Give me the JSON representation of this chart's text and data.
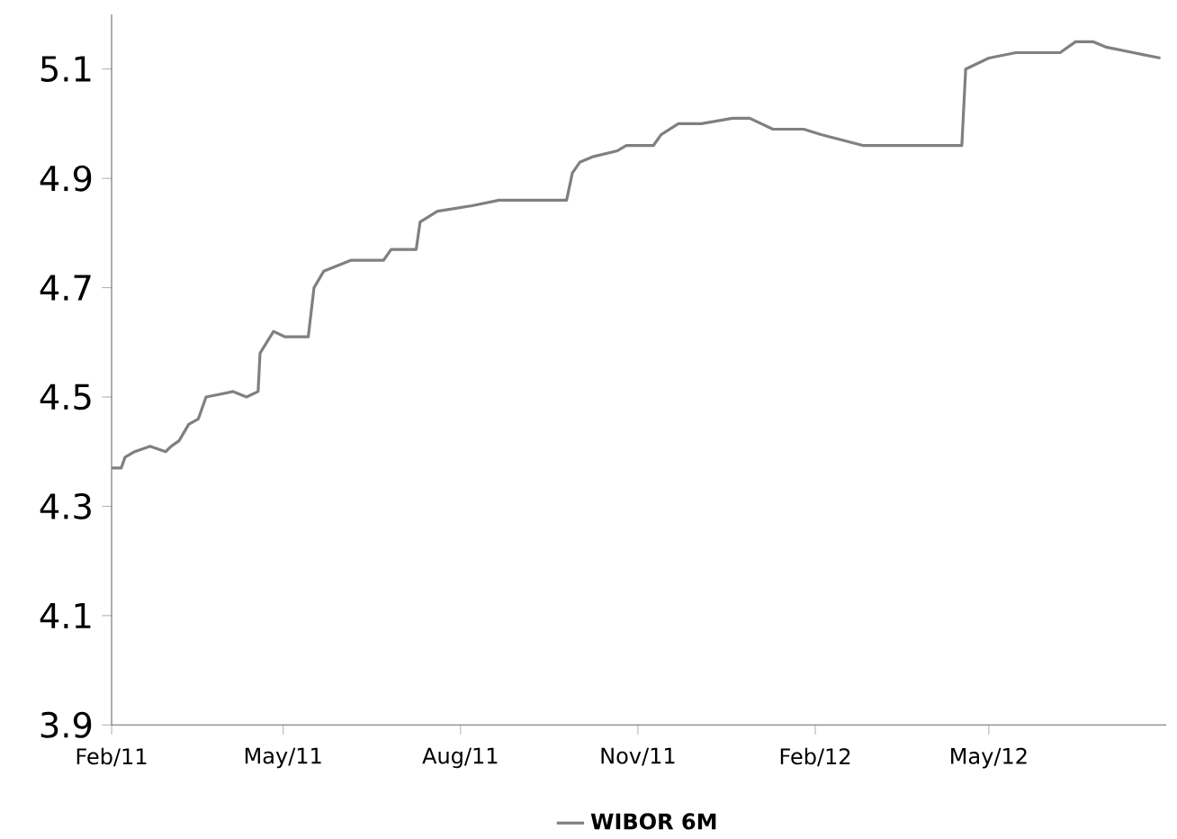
{
  "chart_data": {
    "type": "line",
    "x": [
      "2011-02-01",
      "2011-02-06",
      "2011-02-08",
      "2011-02-13",
      "2011-02-21",
      "2011-03-01",
      "2011-03-04",
      "2011-03-08",
      "2011-03-13",
      "2011-03-18",
      "2011-03-22",
      "2011-04-05",
      "2011-04-12",
      "2011-04-18",
      "2011-04-19",
      "2011-04-26",
      "2011-05-02",
      "2011-05-14",
      "2011-05-17",
      "2011-05-22",
      "2011-06-05",
      "2011-06-10",
      "2011-06-22",
      "2011-06-26",
      "2011-07-09",
      "2011-07-11",
      "2011-07-20",
      "2011-08-07",
      "2011-08-21",
      "2011-09-25",
      "2011-09-28",
      "2011-10-02",
      "2011-10-09",
      "2011-10-21",
      "2011-10-26",
      "2011-11-09",
      "2011-11-13",
      "2011-11-22",
      "2011-12-04",
      "2011-12-20",
      "2011-12-29",
      "2012-01-10",
      "2012-01-26",
      "2012-02-04",
      "2012-02-26",
      "2012-03-15",
      "2012-04-03",
      "2012-04-17",
      "2012-04-19",
      "2012-05-01",
      "2012-05-15",
      "2012-06-07",
      "2012-06-15",
      "2012-06-24",
      "2012-07-01",
      "2012-07-15",
      "2012-07-29"
    ],
    "series": [
      {
        "name": "WIBOR 6M",
        "color": "#808080",
        "values": [
          4.37,
          4.37,
          4.39,
          4.4,
          4.41,
          4.4,
          4.41,
          4.42,
          4.45,
          4.46,
          4.5,
          4.51,
          4.5,
          4.51,
          4.58,
          4.62,
          4.61,
          4.61,
          4.7,
          4.73,
          4.75,
          4.75,
          4.75,
          4.77,
          4.77,
          4.82,
          4.84,
          4.85,
          4.86,
          4.86,
          4.91,
          4.93,
          4.94,
          4.95,
          4.96,
          4.96,
          4.98,
          5.0,
          5.0,
          5.01,
          5.01,
          4.99,
          4.99,
          4.98,
          4.96,
          4.96,
          4.96,
          4.96,
          5.1,
          5.12,
          5.13,
          5.13,
          5.15,
          5.15,
          5.14,
          5.13,
          5.12
        ]
      }
    ],
    "xlim": [
      "2011-02-01",
      "2012-08-01"
    ],
    "xticks": [
      {
        "value": "2011-02-01",
        "label": "Feb/11"
      },
      {
        "value": "2011-05-01",
        "label": "May/11"
      },
      {
        "value": "2011-08-01",
        "label": "Aug/11"
      },
      {
        "value": "2011-11-01",
        "label": "Nov/11"
      },
      {
        "value": "2012-02-01",
        "label": "Feb/12"
      },
      {
        "value": "2012-05-01",
        "label": "May/12"
      }
    ],
    "ylim": [
      3.9,
      5.2
    ],
    "yticks": [
      3.9,
      4.1,
      4.3,
      4.5,
      4.7,
      4.9,
      5.1
    ],
    "legend": "bottom",
    "grid": false
  }
}
